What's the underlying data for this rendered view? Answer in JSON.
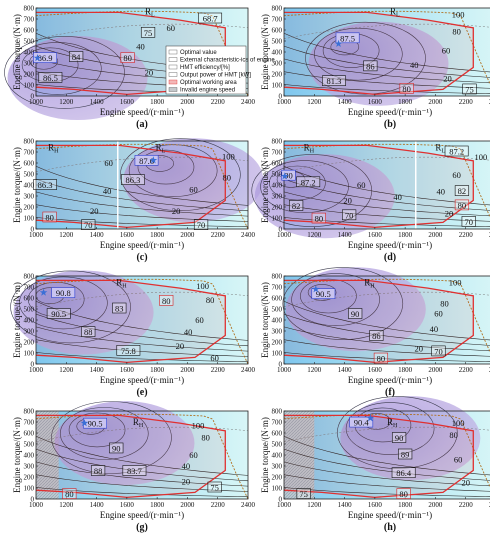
{
  "chart_data": [
    {
      "id": "a",
      "type": "contour",
      "panel_label": "(a)",
      "ylabel": "Engine torque/(N·m)",
      "xlabel": "Engine speed/(r·min⁻¹)",
      "xlim": [
        1000,
        2400
      ],
      "ylim": [
        0,
        800
      ],
      "xticks": [
        1000,
        1200,
        1400,
        1600,
        1800,
        2000,
        2200,
        2400
      ],
      "yticks": [
        0,
        100,
        200,
        300,
        400,
        500,
        600,
        700,
        800
      ],
      "region_labels": [
        {
          "text": "R",
          "sub": "L",
          "x": 1720,
          "y": 770
        }
      ],
      "boxed_values": [
        {
          "text": "86.9",
          "x": 1060,
          "y": 340,
          "color": "blue"
        },
        {
          "text": "84",
          "x": 1265,
          "y": 350
        },
        {
          "text": "86.5",
          "x": 1095,
          "y": 160
        },
        {
          "text": "75",
          "x": 1740,
          "y": 570
        },
        {
          "text": "68.7",
          "x": 2150,
          "y": 700
        },
        {
          "text": "80",
          "x": 1605,
          "y": 340,
          "color": "red"
        }
      ],
      "plain_values": [
        {
          "text": "60",
          "x": 1890,
          "y": 620
        },
        {
          "text": "40",
          "x": 1690,
          "y": 450
        },
        {
          "text": "20",
          "x": 1745,
          "y": 215
        }
      ],
      "optimal": {
        "x": 1010,
        "y": 345
      },
      "legend": [
        "Optimal value",
        "External characteristic-ics of engine",
        "HMT efficiency/[%]",
        "Output power of HMT [kW]",
        "Optimal working area",
        "Invalid engine speed"
      ]
    },
    {
      "id": "b",
      "type": "contour",
      "panel_label": "(b)",
      "ylabel": "Engine torque/(N·m)",
      "xlabel": "Engine speed/(r·min⁻¹)",
      "xlim": [
        1000,
        2400
      ],
      "ylim": [
        0,
        800
      ],
      "xticks": [
        1000,
        1200,
        1400,
        1600,
        1800,
        2000,
        2200,
        2400
      ],
      "yticks": [
        0,
        100,
        200,
        300,
        400,
        500,
        600,
        700,
        800
      ],
      "region_labels": [
        {
          "text": "R",
          "sub": "L",
          "x": 1700,
          "y": 770
        }
      ],
      "boxed_values": [
        {
          "text": "87.5",
          "x": 1420,
          "y": 520,
          "color": "blue"
        },
        {
          "text": "86",
          "x": 1570,
          "y": 265
        },
        {
          "text": "81.3",
          "x": 1330,
          "y": 130
        },
        {
          "text": "80",
          "x": 1810,
          "y": 60,
          "color": "red"
        },
        {
          "text": "75",
          "x": 2225,
          "y": 55
        }
      ],
      "plain_values": [
        {
          "text": "100",
          "x": 2150,
          "y": 740
        },
        {
          "text": "80",
          "x": 2140,
          "y": 585
        },
        {
          "text": "60",
          "x": 2070,
          "y": 415
        },
        {
          "text": "40",
          "x": 1860,
          "y": 280
        },
        {
          "text": "20",
          "x": 2080,
          "y": 160
        }
      ],
      "optimal": {
        "x": 1360,
        "y": 475
      }
    },
    {
      "id": "c",
      "type": "contour",
      "panel_label": "(c)",
      "ylabel": "Engine torque/(N·m)",
      "xlabel": "Engine speed/(r·min⁻¹)",
      "xlim": [
        1000,
        2400
      ],
      "ylim": [
        0,
        800
      ],
      "xticks": [
        1000,
        1200,
        1400,
        1600,
        1800,
        2000,
        2200,
        2400
      ],
      "yticks": [
        0,
        100,
        200,
        300,
        400,
        500,
        600,
        700,
        800
      ],
      "region_labels": [
        {
          "text": "R",
          "sub": "H",
          "x": 1080,
          "y": 740
        },
        {
          "text": "R",
          "sub": "L",
          "x": 1790,
          "y": 740
        }
      ],
      "boxed_values": [
        {
          "text": "87.6",
          "x": 1730,
          "y": 615,
          "color": "blue"
        },
        {
          "text": "86.3",
          "x": 1060,
          "y": 395
        },
        {
          "text": "86.3",
          "x": 1640,
          "y": 440
        },
        {
          "text": "80",
          "x": 1090,
          "y": 100,
          "color": "red"
        },
        {
          "text": "70",
          "x": 1345,
          "y": 30
        },
        {
          "text": "70",
          "x": 2090,
          "y": 30
        }
      ],
      "plain_values": [
        {
          "text": "100",
          "x": 2270,
          "y": 660
        },
        {
          "text": "80",
          "x": 2260,
          "y": 470
        },
        {
          "text": "60",
          "x": 2040,
          "y": 360
        },
        {
          "text": "60",
          "x": 1480,
          "y": 600
        },
        {
          "text": "40",
          "x": 1470,
          "y": 345
        },
        {
          "text": "20",
          "x": 1385,
          "y": 165
        },
        {
          "text": "20",
          "x": 1925,
          "y": 165
        }
      ],
      "optimal": {
        "x": 1775,
        "y": 625
      }
    },
    {
      "id": "d",
      "type": "contour",
      "panel_label": "(d)",
      "ylabel": "Engine torque/(N·m)",
      "xlabel": "Engine speed/(r·min⁻¹)",
      "xlim": [
        1000,
        2400
      ],
      "ylim": [
        0,
        800
      ],
      "xticks": [
        1000,
        1200,
        1400,
        1600,
        1800,
        2000,
        2200,
        2400
      ],
      "yticks": [
        0,
        100,
        200,
        300,
        400,
        500,
        600,
        700,
        800
      ],
      "region_labels": [
        {
          "text": "R",
          "sub": "H",
          "x": 1130,
          "y": 740
        },
        {
          "text": "R",
          "sub": "L",
          "x": 2000,
          "y": 740
        }
      ],
      "boxed_values": [
        {
          "text": "90",
          "x": 1030,
          "y": 480,
          "color": "blue"
        },
        {
          "text": "87.2",
          "x": 1160,
          "y": 420
        },
        {
          "text": "87.2",
          "x": 2140,
          "y": 700
        },
        {
          "text": "82",
          "x": 1080,
          "y": 205
        },
        {
          "text": "82",
          "x": 2175,
          "y": 340
        },
        {
          "text": "80",
          "x": 1230,
          "y": 90,
          "color": "red"
        },
        {
          "text": "80",
          "x": 2175,
          "y": 210,
          "color": "red"
        },
        {
          "text": "70",
          "x": 1430,
          "y": 120
        },
        {
          "text": "70",
          "x": 2220,
          "y": 60
        }
      ],
      "plain_values": [
        {
          "text": "100",
          "x": 2300,
          "y": 655
        },
        {
          "text": "60",
          "x": 1510,
          "y": 400
        },
        {
          "text": "60",
          "x": 2140,
          "y": 490
        },
        {
          "text": "40",
          "x": 1750,
          "y": 290
        },
        {
          "text": "40",
          "x": 2035,
          "y": 340
        },
        {
          "text": "20",
          "x": 1420,
          "y": 260
        },
        {
          "text": "20",
          "x": 2090,
          "y": 140
        }
      ],
      "optimal": {
        "x": 1005,
        "y": 480
      }
    },
    {
      "id": "e",
      "type": "contour",
      "panel_label": "(e)",
      "ylabel": "Engine torque/(N·m)",
      "xlabel": "Engine speed/(r·min⁻¹)",
      "xlim": [
        1000,
        2400
      ],
      "ylim": [
        0,
        800
      ],
      "xticks": [
        1000,
        1200,
        1400,
        1600,
        1800,
        2000,
        2200,
        2400
      ],
      "yticks": [
        0,
        100,
        200,
        300,
        400,
        500,
        600,
        700,
        800
      ],
      "region_labels": [
        {
          "text": "R",
          "sub": "H",
          "x": 1530,
          "y": 740
        }
      ],
      "boxed_values": [
        {
          "text": "90.8",
          "x": 1180,
          "y": 640,
          "color": "blue"
        },
        {
          "text": "90.5",
          "x": 1150,
          "y": 450
        },
        {
          "text": "88",
          "x": 1345,
          "y": 285
        },
        {
          "text": "83",
          "x": 1550,
          "y": 500
        },
        {
          "text": "80",
          "x": 1860,
          "y": 570,
          "color": "red"
        },
        {
          "text": "75.8",
          "x": 1610,
          "y": 115
        }
      ],
      "plain_values": [
        {
          "text": "100",
          "x": 2100,
          "y": 710
        },
        {
          "text": "80",
          "x": 2150,
          "y": 580
        },
        {
          "text": "60",
          "x": 2080,
          "y": 400
        },
        {
          "text": "40",
          "x": 2005,
          "y": 290
        },
        {
          "text": "20",
          "x": 1950,
          "y": 165
        },
        {
          "text": "60",
          "x": 2180,
          "y": 55
        }
      ],
      "optimal": {
        "x": 1050,
        "y": 650
      }
    },
    {
      "id": "f",
      "type": "contour",
      "panel_label": "(f)",
      "ylabel": "Engine torque/(N·m)",
      "xlabel": "Engine speed/(r·min⁻¹)",
      "xlim": [
        1000,
        2400
      ],
      "ylim": [
        0,
        800
      ],
      "xticks": [
        1000,
        1200,
        1400,
        1600,
        1800,
        2000,
        2200,
        2400
      ],
      "yticks": [
        0,
        100,
        200,
        300,
        400,
        500,
        600,
        700,
        800
      ],
      "region_labels": [
        {
          "text": "R",
          "sub": "H",
          "x": 1530,
          "y": 740
        }
      ],
      "boxed_values": [
        {
          "text": "90.5",
          "x": 1260,
          "y": 630,
          "color": "blue"
        },
        {
          "text": "90",
          "x": 1470,
          "y": 450
        },
        {
          "text": "86",
          "x": 1610,
          "y": 250
        },
        {
          "text": "80",
          "x": 1640,
          "y": 45,
          "color": "red"
        },
        {
          "text": "70",
          "x": 2020,
          "y": 110
        }
      ],
      "plain_values": [
        {
          "text": "100",
          "x": 2130,
          "y": 740
        },
        {
          "text": "80",
          "x": 2060,
          "y": 550
        },
        {
          "text": "60",
          "x": 2020,
          "y": 460
        },
        {
          "text": "40",
          "x": 1990,
          "y": 320
        },
        {
          "text": "20",
          "x": 1890,
          "y": 140
        }
      ],
      "optimal": {
        "x": 1210,
        "y": 680
      }
    },
    {
      "id": "g",
      "type": "contour",
      "panel_label": "(g)",
      "ylabel": "Engine torque/(N·m)",
      "xlabel": "Engine speed/(r·min⁻¹)",
      "xlim": [
        1000,
        2400
      ],
      "ylim": [
        0,
        800
      ],
      "xticks": [
        1000,
        1200,
        1400,
        1600,
        1800,
        2000,
        2200,
        2400
      ],
      "yticks": [
        0,
        100,
        200,
        300,
        400,
        500,
        600,
        700,
        800
      ],
      "region_labels": [
        {
          "text": "R",
          "sub": "H",
          "x": 1640,
          "y": 700
        }
      ],
      "boxed_values": [
        {
          "text": "90.5",
          "x": 1390,
          "y": 680,
          "color": "blue"
        },
        {
          "text": "90",
          "x": 1530,
          "y": 455
        },
        {
          "text": "88",
          "x": 1410,
          "y": 250
        },
        {
          "text": "83.7",
          "x": 1650,
          "y": 250
        },
        {
          "text": "80",
          "x": 1220,
          "y": 40,
          "color": "red"
        },
        {
          "text": "75",
          "x": 2180,
          "y": 100
        }
      ],
      "plain_values": [
        {
          "text": "100",
          "x": 2070,
          "y": 670
        },
        {
          "text": "80",
          "x": 2120,
          "y": 560
        },
        {
          "text": "60",
          "x": 2040,
          "y": 400
        },
        {
          "text": "40",
          "x": 1990,
          "y": 300
        },
        {
          "text": "20",
          "x": 1990,
          "y": 160
        }
      ],
      "optimal": {
        "x": 1320,
        "y": 690
      }
    },
    {
      "id": "h",
      "type": "contour",
      "panel_label": "(h)",
      "ylabel": "Engine torque/(N·m)",
      "xlabel": "Engine speed/(r·min⁻¹)",
      "xlim": [
        1000,
        2400
      ],
      "ylim": [
        0,
        800
      ],
      "xticks": [
        1000,
        1200,
        1400,
        1600,
        1800,
        2000,
        2200,
        2400
      ],
      "yticks": [
        0,
        100,
        200,
        300,
        400,
        500,
        600,
        700,
        800
      ],
      "region_labels": [
        {
          "text": "R",
          "sub": "H",
          "x": 1680,
          "y": 700
        }
      ],
      "boxed_values": [
        {
          "text": "90.4",
          "x": 1510,
          "y": 690,
          "color": "blue"
        },
        {
          "text": "90",
          "x": 1760,
          "y": 550
        },
        {
          "text": "89",
          "x": 1800,
          "y": 400
        },
        {
          "text": "86.4",
          "x": 1790,
          "y": 230
        },
        {
          "text": "80",
          "x": 1790,
          "y": 40,
          "color": "red"
        },
        {
          "text": "75",
          "x": 1130,
          "y": 40
        }
      ],
      "plain_values": [
        {
          "text": "100",
          "x": 2150,
          "y": 690
        },
        {
          "text": "80",
          "x": 2120,
          "y": 580
        },
        {
          "text": "60",
          "x": 2150,
          "y": 360
        },
        {
          "text": "20",
          "x": 2200,
          "y": 150
        }
      ],
      "optimal": {
        "x": 1570,
        "y": 735
      }
    }
  ],
  "colors": {
    "bg_light": "#cdf0f5",
    "bg_mid": "#a8e4f0",
    "accent_blue": "#3a6fd6",
    "opt_area": "#e03030",
    "purple_fill": "#b9a7dc",
    "text_blue": "#2a3fd0",
    "text_red": "#d62020",
    "gray_hatch": "#9aa0a6"
  }
}
